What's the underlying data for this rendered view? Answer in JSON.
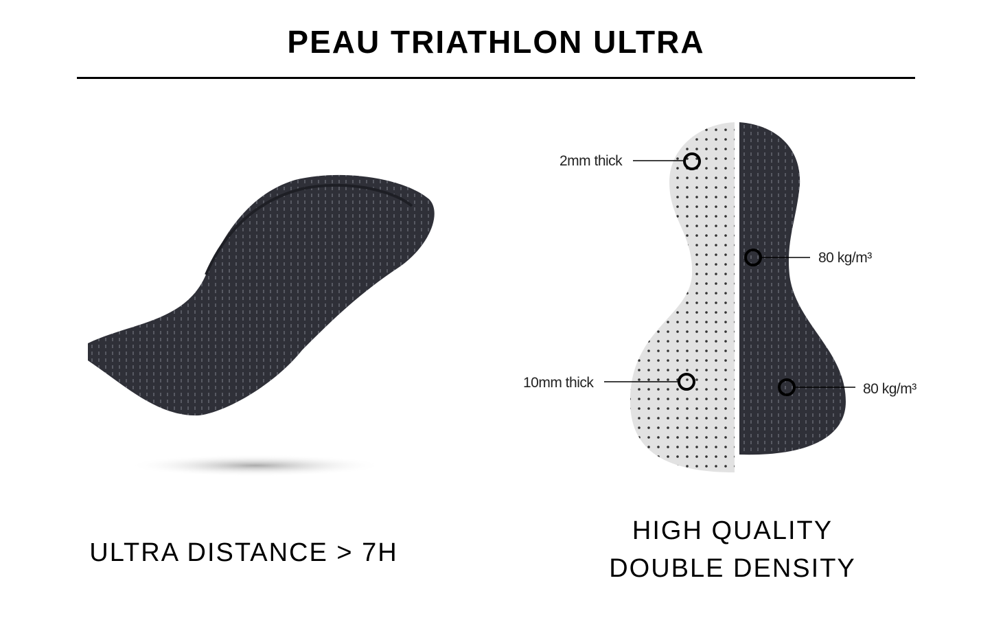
{
  "title": "PEAU TRIATHLON ULTRA",
  "captions": {
    "left": "ULTRA DISTANCE > 7H",
    "right_line1": "HIGH QUALITY",
    "right_line2": "DOUBLE DENSITY"
  },
  "diagram_labels": {
    "top_left": "2mm thick",
    "bottom_left": "10mm thick",
    "mid_right": "80 kg/m³",
    "bottom_right": "80 kg/m³"
  },
  "colors": {
    "pad_dark": "#2f3038",
    "pad_light": "#d9d9d9",
    "text": "#000000"
  }
}
